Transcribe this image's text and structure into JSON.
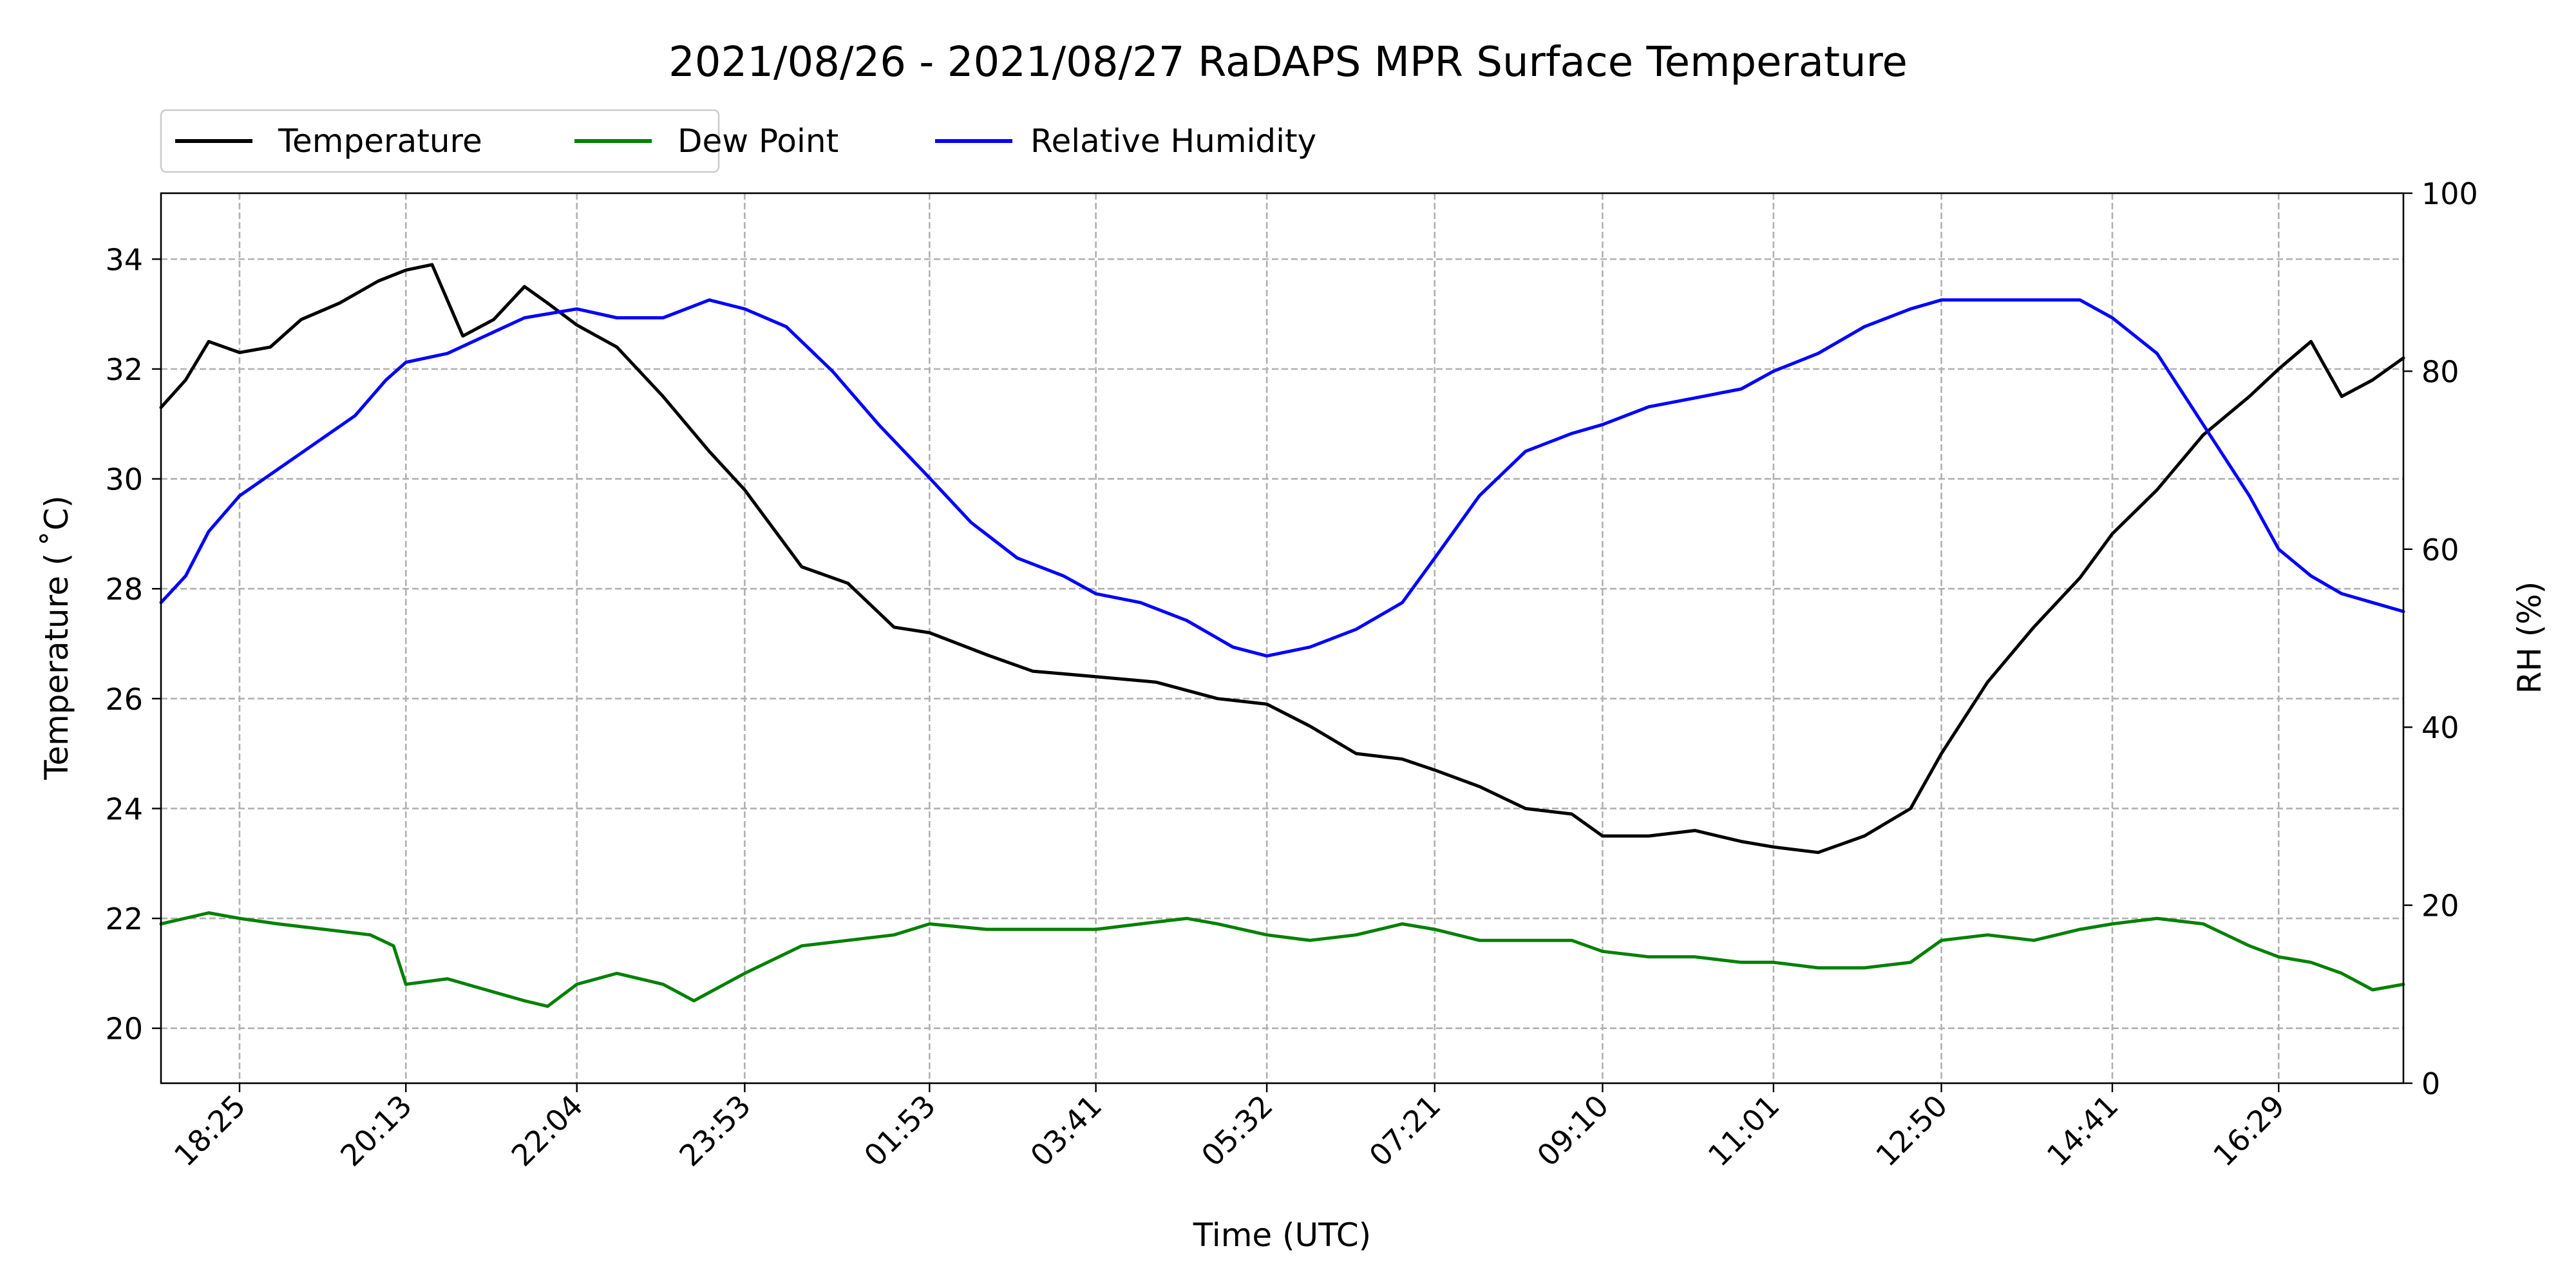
{
  "chart_data": {
    "type": "line",
    "title": "2021/08/26 - 2021/08/27 RaDAPS MPR Surface Temperature",
    "xlabel": "Time (UTC)",
    "ylabel": "Temperature ($^\\circ$C)",
    "ylabel_display": "Temperature ( ˚C)",
    "y2label": "RH (%)",
    "ylim": [
      19,
      35.2
    ],
    "y2lim": [
      0,
      100
    ],
    "yticks": [
      20,
      22,
      24,
      26,
      28,
      30,
      32,
      34
    ],
    "y2ticks": [
      0,
      20,
      40,
      60,
      80,
      100
    ],
    "xlim": [
      "2021-08-26 17:34",
      "2021-08-27 17:50"
    ],
    "xticks": [
      "18:25",
      "20:13",
      "22:04",
      "23:53",
      "01:53",
      "03:41",
      "05:32",
      "07:21",
      "09:10",
      "11:01",
      "12:50",
      "14:41",
      "16:29"
    ],
    "grid": true,
    "legend": {
      "position": "top-left, above plot",
      "entries": [
        "Temperature",
        "Dew Point",
        "Relative Humidity"
      ]
    },
    "colors": {
      "Temperature": "#000000",
      "Dew Point": "#008000",
      "Relative Humidity": "#0000ff"
    },
    "series": [
      {
        "name": "Temperature",
        "axis": "left",
        "x": [
          "2021-08-26 17:34",
          "2021-08-26 17:50",
          "2021-08-26 18:05",
          "2021-08-26 18:25",
          "2021-08-26 18:45",
          "2021-08-26 19:05",
          "2021-08-26 19:30",
          "2021-08-26 19:55",
          "2021-08-26 20:13",
          "2021-08-26 20:30",
          "2021-08-26 20:50",
          "2021-08-26 21:10",
          "2021-08-26 21:30",
          "2021-08-26 21:45",
          "2021-08-26 22:04",
          "2021-08-26 22:30",
          "2021-08-26 23:00",
          "2021-08-26 23:30",
          "2021-08-26 23:53",
          "2021-08-27 00:30",
          "2021-08-27 01:00",
          "2021-08-27 01:30",
          "2021-08-27 01:53",
          "2021-08-27 02:30",
          "2021-08-27 03:00",
          "2021-08-27 03:41",
          "2021-08-27 04:20",
          "2021-08-27 05:00",
          "2021-08-27 05:32",
          "2021-08-27 06:00",
          "2021-08-27 06:30",
          "2021-08-27 07:00",
          "2021-08-27 07:21",
          "2021-08-27 07:50",
          "2021-08-27 08:20",
          "2021-08-27 08:50",
          "2021-08-27 09:10",
          "2021-08-27 09:40",
          "2021-08-27 10:10",
          "2021-08-27 10:40",
          "2021-08-27 11:01",
          "2021-08-27 11:30",
          "2021-08-27 12:00",
          "2021-08-27 12:30",
          "2021-08-27 12:50",
          "2021-08-27 13:20",
          "2021-08-27 13:50",
          "2021-08-27 14:20",
          "2021-08-27 14:41",
          "2021-08-27 15:10",
          "2021-08-27 15:40",
          "2021-08-27 16:10",
          "2021-08-27 16:29",
          "2021-08-27 16:50",
          "2021-08-27 17:10",
          "2021-08-27 17:30",
          "2021-08-27 17:50"
        ],
        "values": [
          31.3,
          31.8,
          32.5,
          32.3,
          32.4,
          32.9,
          33.2,
          33.6,
          33.8,
          33.9,
          32.6,
          32.9,
          33.5,
          33.2,
          32.8,
          32.4,
          31.5,
          30.5,
          29.8,
          28.4,
          28.1,
          27.3,
          27.2,
          26.8,
          26.5,
          26.4,
          26.3,
          26.0,
          25.9,
          25.5,
          25.0,
          24.9,
          24.7,
          24.4,
          24.0,
          23.9,
          23.5,
          23.5,
          23.6,
          23.4,
          23.3,
          23.2,
          23.5,
          24.0,
          25.0,
          26.3,
          27.3,
          28.2,
          29.0,
          29.8,
          30.8,
          31.5,
          32.0,
          32.5,
          31.5,
          31.8,
          32.2
        ]
      },
      {
        "name": "Dew Point",
        "axis": "left",
        "x": [
          "2021-08-26 17:34",
          "2021-08-26 18:05",
          "2021-08-26 18:25",
          "2021-08-26 18:50",
          "2021-08-26 19:20",
          "2021-08-26 19:50",
          "2021-08-26 20:05",
          "2021-08-26 20:13",
          "2021-08-26 20:40",
          "2021-08-26 21:05",
          "2021-08-26 21:30",
          "2021-08-26 21:45",
          "2021-08-26 22:04",
          "2021-08-26 22:30",
          "2021-08-26 23:00",
          "2021-08-26 23:20",
          "2021-08-26 23:53",
          "2021-08-27 00:30",
          "2021-08-27 01:00",
          "2021-08-27 01:30",
          "2021-08-27 01:53",
          "2021-08-27 02:30",
          "2021-08-27 03:00",
          "2021-08-27 03:41",
          "2021-08-27 04:10",
          "2021-08-27 04:40",
          "2021-08-27 05:00",
          "2021-08-27 05:32",
          "2021-08-27 06:00",
          "2021-08-27 06:30",
          "2021-08-27 07:00",
          "2021-08-27 07:21",
          "2021-08-27 07:50",
          "2021-08-27 08:20",
          "2021-08-27 08:50",
          "2021-08-27 09:10",
          "2021-08-27 09:40",
          "2021-08-27 10:10",
          "2021-08-27 10:40",
          "2021-08-27 11:01",
          "2021-08-27 11:30",
          "2021-08-27 12:00",
          "2021-08-27 12:30",
          "2021-08-27 12:50",
          "2021-08-27 13:20",
          "2021-08-27 13:50",
          "2021-08-27 14:20",
          "2021-08-27 14:41",
          "2021-08-27 15:10",
          "2021-08-27 15:40",
          "2021-08-27 16:10",
          "2021-08-27 16:29",
          "2021-08-27 16:50",
          "2021-08-27 17:10",
          "2021-08-27 17:30",
          "2021-08-27 17:50"
        ],
        "values": [
          21.9,
          22.1,
          22.0,
          21.9,
          21.8,
          21.7,
          21.5,
          20.8,
          20.9,
          20.7,
          20.5,
          20.4,
          20.8,
          21.0,
          20.8,
          20.5,
          21.0,
          21.5,
          21.6,
          21.7,
          21.9,
          21.8,
          21.8,
          21.8,
          21.9,
          22.0,
          21.9,
          21.7,
          21.6,
          21.7,
          21.9,
          21.8,
          21.6,
          21.6,
          21.6,
          21.4,
          21.3,
          21.3,
          21.2,
          21.2,
          21.1,
          21.1,
          21.2,
          21.6,
          21.7,
          21.6,
          21.8,
          21.9,
          22.0,
          21.9,
          21.5,
          21.3,
          21.2,
          21.0,
          20.7,
          20.8
        ]
      },
      {
        "name": "Relative Humidity",
        "axis": "right",
        "x": [
          "2021-08-26 17:34",
          "2021-08-26 17:50",
          "2021-08-26 18:05",
          "2021-08-26 18:25",
          "2021-08-26 18:50",
          "2021-08-26 19:15",
          "2021-08-26 19:40",
          "2021-08-26 20:00",
          "2021-08-26 20:13",
          "2021-08-26 20:40",
          "2021-08-26 21:05",
          "2021-08-26 21:30",
          "2021-08-26 22:04",
          "2021-08-26 22:30",
          "2021-08-26 23:00",
          "2021-08-26 23:30",
          "2021-08-26 23:53",
          "2021-08-27 00:20",
          "2021-08-27 00:50",
          "2021-08-27 01:20",
          "2021-08-27 01:53",
          "2021-08-27 02:20",
          "2021-08-27 02:50",
          "2021-08-27 03:20",
          "2021-08-27 03:41",
          "2021-08-27 04:10",
          "2021-08-27 04:40",
          "2021-08-27 05:10",
          "2021-08-27 05:32",
          "2021-08-27 06:00",
          "2021-08-27 06:30",
          "2021-08-27 07:00",
          "2021-08-27 07:21",
          "2021-08-27 07:50",
          "2021-08-27 08:20",
          "2021-08-27 08:50",
          "2021-08-27 09:10",
          "2021-08-27 09:40",
          "2021-08-27 10:10",
          "2021-08-27 10:40",
          "2021-08-27 11:01",
          "2021-08-27 11:30",
          "2021-08-27 12:00",
          "2021-08-27 12:30",
          "2021-08-27 12:50",
          "2021-08-27 13:20",
          "2021-08-27 13:50",
          "2021-08-27 14:20",
          "2021-08-27 14:41",
          "2021-08-27 15:10",
          "2021-08-27 15:40",
          "2021-08-27 16:10",
          "2021-08-27 16:29",
          "2021-08-27 16:50",
          "2021-08-27 17:10",
          "2021-08-27 17:30",
          "2021-08-27 17:50"
        ],
        "values": [
          54,
          57,
          62,
          66,
          69,
          72,
          75,
          79,
          81,
          82,
          84,
          86,
          87,
          86,
          86,
          88,
          87,
          85,
          80,
          74,
          68,
          63,
          59,
          57,
          55,
          54,
          52,
          49,
          48,
          49,
          51,
          54,
          59,
          66,
          71,
          73,
          74,
          76,
          77,
          78,
          80,
          82,
          85,
          87,
          88,
          88,
          88,
          88,
          86,
          82,
          74,
          66,
          60,
          57,
          55,
          54,
          53
        ]
      }
    ]
  }
}
